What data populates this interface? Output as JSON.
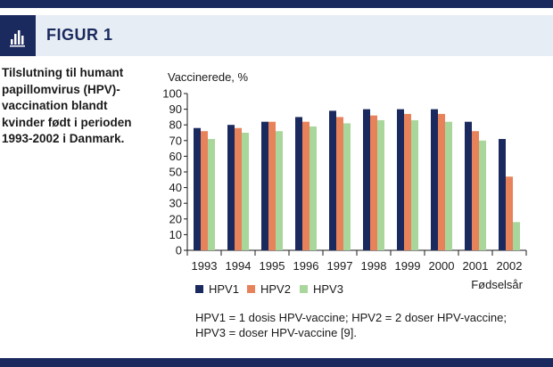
{
  "figure": {
    "label": "FIGUR 1",
    "caption": "Tilslutning til humant papillomvirus (HPV)-vaccination blandt kvinder født i perioden 1993-2002 i Danmark.",
    "footnote_line1": "HPV1 = 1 dosis HPV-vaccine; HPV2 = 2 doser HPV-vaccine;",
    "footnote_line2": "HPV3 = doser HPV-vaccine [9].",
    "icon": "bar-chart-icon"
  },
  "chart_data": {
    "type": "bar",
    "ylabel": "Vaccinerede, %",
    "xlabel": "Fødselsår",
    "ylim": [
      0,
      100
    ],
    "yticks": [
      0,
      10,
      20,
      30,
      40,
      50,
      60,
      70,
      80,
      90,
      100
    ],
    "grid": false,
    "legend_position": "bottom",
    "categories": [
      "1993",
      "1994",
      "1995",
      "1996",
      "1997",
      "1998",
      "1999",
      "2000",
      "2001",
      "2002"
    ],
    "series": [
      {
        "name": "HPV1",
        "color": "#1b2a5e",
        "values": [
          78,
          80,
          82,
          85,
          89,
          90,
          90,
          90,
          82,
          71
        ]
      },
      {
        "name": "HPV2",
        "color": "#e8825b",
        "values": [
          76,
          78,
          82,
          82,
          85,
          86,
          87,
          87,
          76,
          47
        ]
      },
      {
        "name": "HPV3",
        "color": "#a9d69b",
        "values": [
          71,
          75,
          76,
          79,
          81,
          83,
          83,
          82,
          70,
          18
        ]
      }
    ]
  }
}
